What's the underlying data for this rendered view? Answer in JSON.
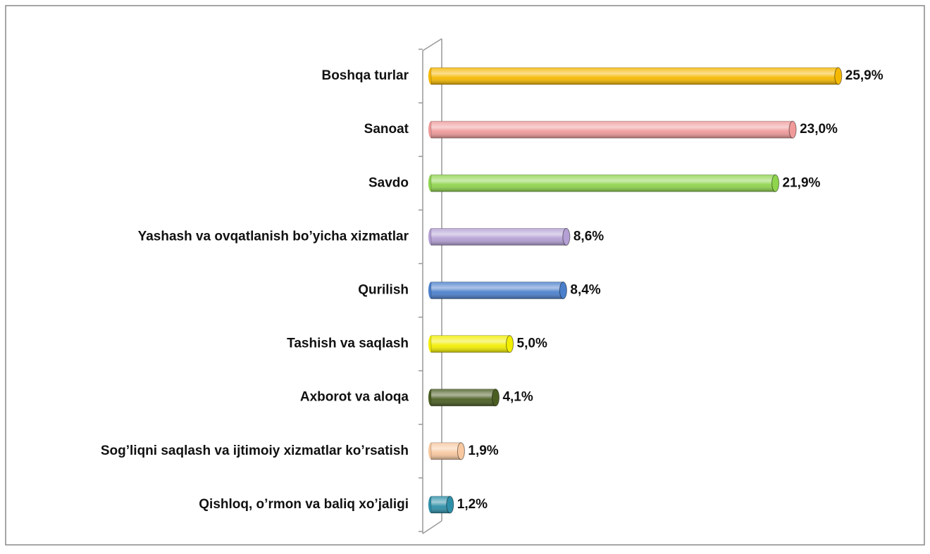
{
  "chart_data": {
    "type": "bar",
    "orientation": "horizontal",
    "categories": [
      "Boshqa turlar",
      "Sanoat",
      "Savdo",
      "Yashash va ovqatlanish bo’yicha xizmatlar",
      "Qurilish",
      "Tashish va saqlash",
      "Axborot va aloqa",
      "Sog’liqni saqlash va ijtimoiy xizmatlar ko’rsatish",
      "Qishloq, o’rmon va baliq xo’jaligi"
    ],
    "values": [
      25.9,
      23.0,
      21.9,
      8.6,
      8.4,
      5.0,
      4.1,
      1.9,
      1.2
    ],
    "value_labels": [
      "25,9%",
      "23,0%",
      "21,9%",
      "8,6%",
      "8,4%",
      "5,0%",
      "4,1%",
      "1,9%",
      "1,2%"
    ],
    "colors": [
      "#f5b800",
      "#f09a9a",
      "#8ed44c",
      "#b4a0d4",
      "#4a7fcc",
      "#f2ee00",
      "#4a5e22",
      "#f8c8a0",
      "#2e8fa8"
    ],
    "xlim": [
      0,
      26
    ]
  }
}
